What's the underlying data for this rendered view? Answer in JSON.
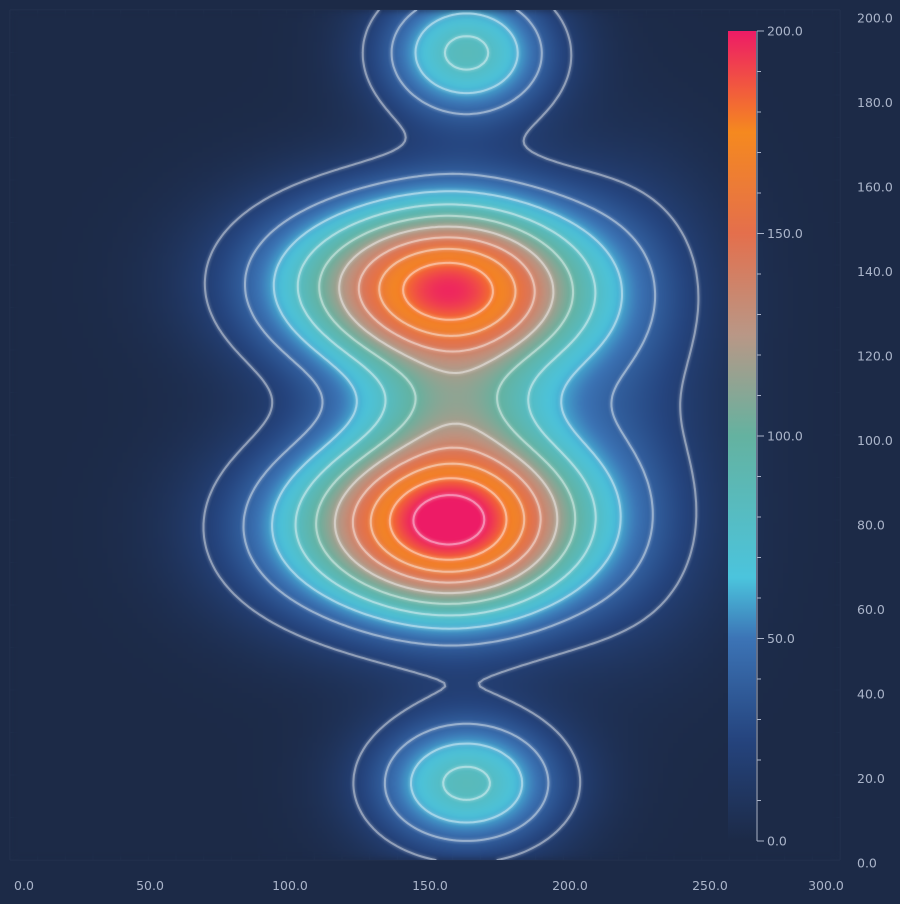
{
  "chart_data": {
    "type": "heatmap",
    "subtype": "contour-heatmap",
    "title": "",
    "xlabel": "",
    "ylabel": "",
    "xlim": [
      0,
      300
    ],
    "ylim": [
      0,
      200
    ],
    "x_ticks": [
      "0.0",
      "50.0",
      "100.0",
      "150.0",
      "200.0",
      "250.0",
      "300.0"
    ],
    "y_ticks": [
      "0.0",
      "20.0",
      "40.0",
      "60.0",
      "80.0",
      "100.0",
      "120.0",
      "140.0",
      "160.0",
      "180.0",
      "200.0"
    ],
    "colorbar": {
      "range": [
        0,
        200
      ],
      "ticks": [
        "0.0",
        "50.0",
        "100.0",
        "150.0",
        "200.0"
      ],
      "stops": [
        {
          "value": 0,
          "color": "#1c2a47"
        },
        {
          "value": 25,
          "color": "#25447e"
        },
        {
          "value": 50,
          "color": "#3c74b6"
        },
        {
          "value": 65,
          "color": "#4bc4dd"
        },
        {
          "value": 100,
          "color": "#64b2a0"
        },
        {
          "value": 125,
          "color": "#b99786"
        },
        {
          "value": 150,
          "color": "#e46f4c"
        },
        {
          "value": 175,
          "color": "#f5891f"
        },
        {
          "value": 200,
          "color": "#ed1b66"
        }
      ]
    },
    "contour_levels": [
      20,
      40,
      60,
      80,
      100,
      120,
      140,
      160,
      180,
      200
    ],
    "peaks": [
      {
        "x": 160,
        "y": 80,
        "value": 200
      },
      {
        "x": 160,
        "y": 133,
        "value": 185
      },
      {
        "x": 165,
        "y": 190,
        "value": 85
      },
      {
        "x": 165,
        "y": 17,
        "value": 85
      }
    ],
    "grid": true,
    "legend": "colorbar right"
  }
}
